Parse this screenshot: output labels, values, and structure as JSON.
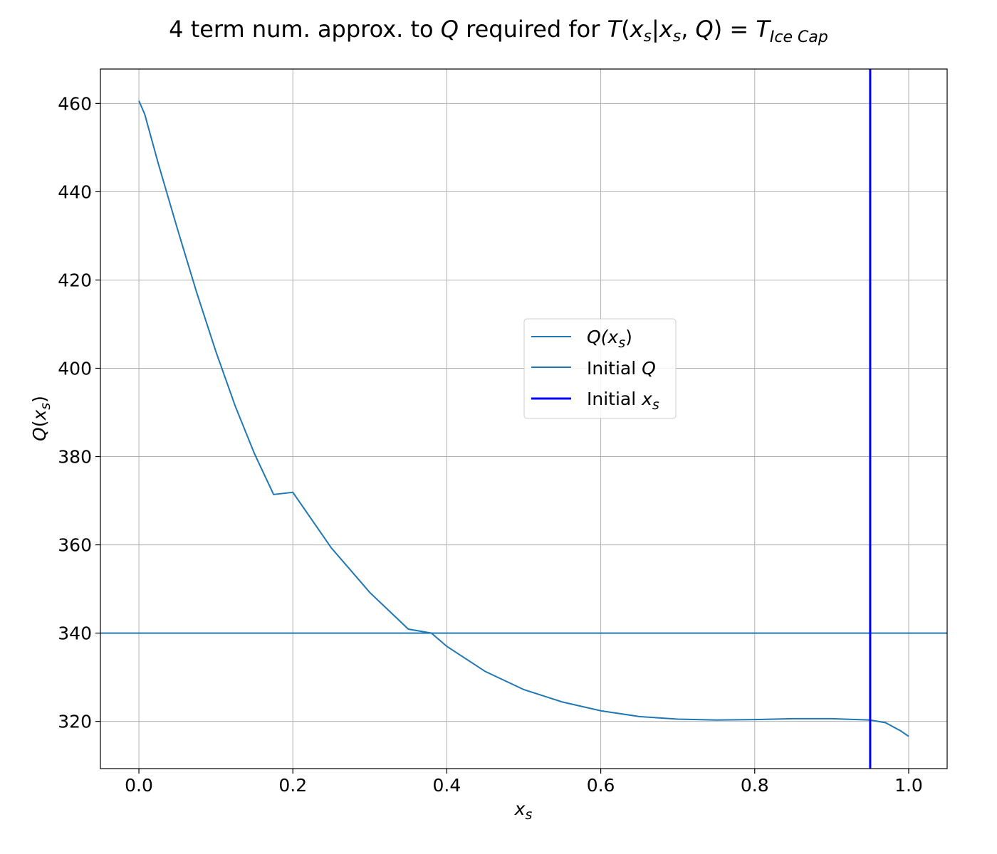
{
  "chart_data": {
    "type": "line",
    "title": {
      "prefix": "4 term num. approx. to ",
      "q": "Q",
      "middle": " required for ",
      "T": "T",
      "open": "(",
      "xs_x": "x",
      "xs_sub": "s",
      "bar": "|",
      "comma": ", ",
      "close": ")",
      "equals": " = ",
      "T2": "T",
      "sub": "Ice Cap"
    },
    "xlabel": {
      "main": "x",
      "sub": "s"
    },
    "ylabel": {
      "fn": "Q",
      "open": "(",
      "x": "x",
      "sub": "s",
      "close": ")"
    },
    "xlim": [
      -0.05,
      1.05
    ],
    "ylim": [
      309.3,
      467.8
    ],
    "xticks": [
      0.0,
      0.2,
      0.4,
      0.6,
      0.8,
      1.0
    ],
    "xtick_labels": [
      "0.0",
      "0.2",
      "0.4",
      "0.6",
      "0.8",
      "1.0"
    ],
    "yticks": [
      320,
      340,
      360,
      380,
      400,
      420,
      440,
      460
    ],
    "ytick_labels": [
      "320",
      "340",
      "360",
      "380",
      "400",
      "420",
      "440",
      "460"
    ],
    "grid": true,
    "legend_position": "center-right",
    "series": [
      {
        "name": "Q(x_s)",
        "kind": "line",
        "color": "#1f77b4",
        "x": [
          0.0,
          0.0075,
          0.025,
          0.05,
          0.075,
          0.1,
          0.125,
          0.15,
          0.175,
          0.2,
          0.25,
          0.3,
          0.35,
          0.38,
          0.4,
          0.45,
          0.5,
          0.55,
          0.6,
          0.65,
          0.7,
          0.75,
          0.8,
          0.85,
          0.9,
          0.95,
          0.97,
          0.99,
          1.0
        ],
        "y": [
          460.6,
          457.6,
          446.5,
          431.6,
          417.2,
          403.8,
          391.5,
          380.7,
          371.4,
          371.9,
          359.3,
          349.2,
          340.9,
          340.0,
          337.0,
          331.3,
          327.2,
          324.4,
          322.4,
          321.1,
          320.5,
          320.3,
          320.4,
          320.6,
          320.6,
          320.3,
          319.7,
          317.8,
          316.6
        ]
      },
      {
        "name": "Initial Q",
        "kind": "hline",
        "color": "#1f77b4",
        "value": 340
      },
      {
        "name": "Initial x_s",
        "kind": "vline",
        "color": "#0000ff",
        "value": 0.95
      }
    ],
    "legend": [
      {
        "main": "Q(x",
        "sub": "s",
        "tail": ")",
        "style": "math",
        "color": "#1f77b4"
      },
      {
        "main": "Initial ",
        "math": "Q",
        "style": "mixed",
        "color": "#1f77b4"
      },
      {
        "main": "Initial ",
        "math": "x",
        "sub": "s",
        "style": "mixed-sub",
        "color": "#0000ff"
      }
    ]
  }
}
